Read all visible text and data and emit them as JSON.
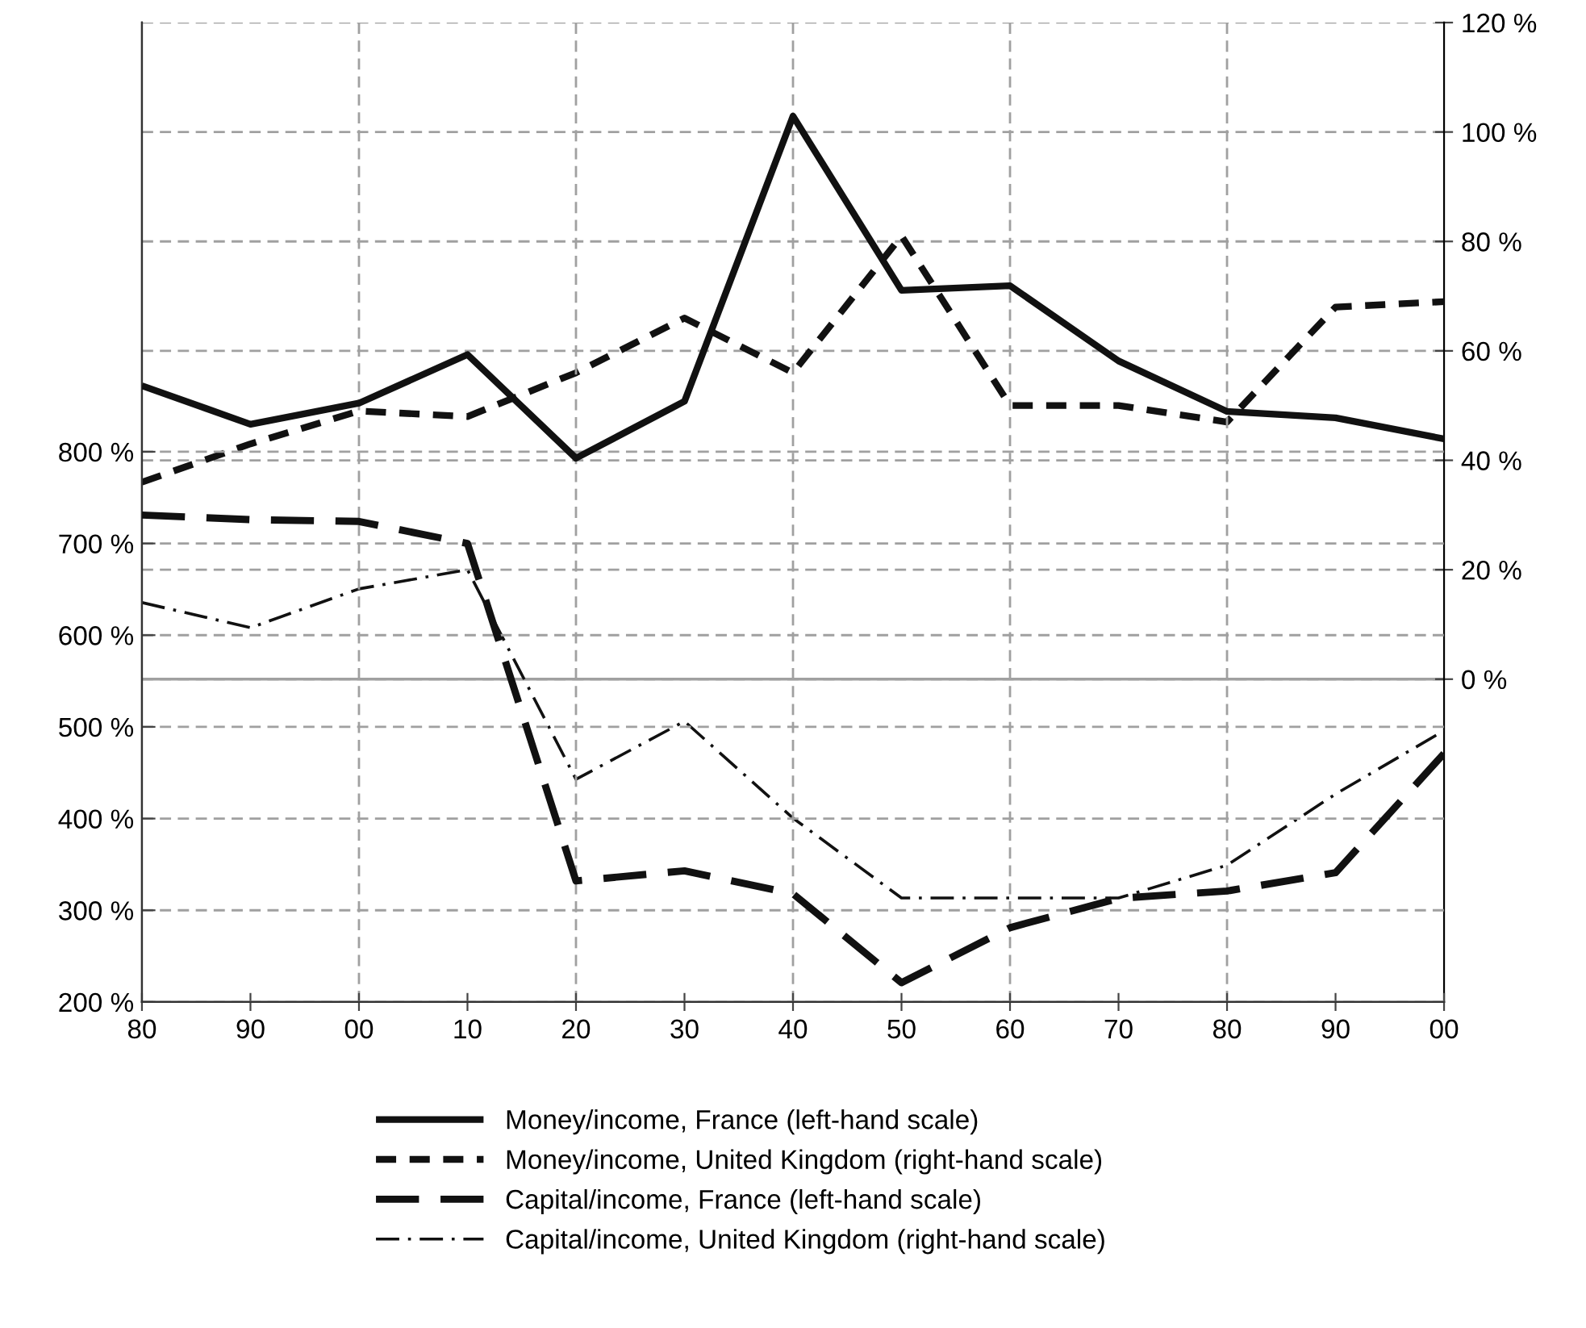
{
  "chart_data": {
    "type": "line",
    "x": [
      1880,
      1890,
      1900,
      1910,
      1920,
      1930,
      1940,
      1950,
      1960,
      1970,
      1980,
      1990,
      2000
    ],
    "xlim": [
      1880,
      2000
    ],
    "xticks": [
      {
        "value": 1880,
        "label": "80"
      },
      {
        "value": 1890,
        "label": "90"
      },
      {
        "value": 1900,
        "label": "00"
      },
      {
        "value": 1910,
        "label": "10"
      },
      {
        "value": 1920,
        "label": "20"
      },
      {
        "value": 1930,
        "label": "30"
      },
      {
        "value": 1940,
        "label": "40"
      },
      {
        "value": 1950,
        "label": "50"
      },
      {
        "value": 1960,
        "label": "60"
      },
      {
        "value": 1970,
        "label": "70"
      },
      {
        "value": 1980,
        "label": "80"
      },
      {
        "value": 1990,
        "label": "90"
      },
      {
        "value": 2000,
        "label": "00"
      }
    ],
    "ylim": [
      200,
      1268
    ],
    "yticks": [
      {
        "value": 200,
        "label": "200 %"
      },
      {
        "value": 300,
        "label": "300 %"
      },
      {
        "value": 400,
        "label": "400 %"
      },
      {
        "value": 500,
        "label": "500 %"
      },
      {
        "value": 600,
        "label": "600 %"
      },
      {
        "value": 700,
        "label": "700 %"
      },
      {
        "value": 800,
        "label": "800 %"
      }
    ],
    "y2lim": [
      -59,
      120
    ],
    "y2ticks": [
      {
        "value": 0,
        "label": "0 %"
      },
      {
        "value": 20,
        "label": "20 %"
      },
      {
        "value": 40,
        "label": "40 %"
      },
      {
        "value": 60,
        "label": "60 %"
      },
      {
        "value": 80,
        "label": "80 %"
      },
      {
        "value": 100,
        "label": "100 %"
      },
      {
        "value": 120,
        "label": "120 %"
      }
    ],
    "grid": "y",
    "legend": "bottom",
    "ref_lines": [
      {
        "axis": "y2",
        "value": 0,
        "color": "#a0a0a0",
        "line_style": "solid"
      },
      {
        "axis": "x",
        "value": 1900,
        "color": "#a0a0a0",
        "line_style": "dashed"
      },
      {
        "axis": "x",
        "value": 1920,
        "color": "#a0a0a0",
        "line_style": "dashed"
      },
      {
        "axis": "x",
        "value": 1940,
        "color": "#a0a0a0",
        "line_style": "dashed"
      },
      {
        "axis": "x",
        "value": 1960,
        "color": "#a0a0a0",
        "line_style": "dashed"
      },
      {
        "axis": "x",
        "value": 1980,
        "color": "#a0a0a0",
        "line_style": "dashed"
      }
    ],
    "series": [
      {
        "name": "Money/income, France (left-hand scale)",
        "color": "#111111",
        "line_style": "solid",
        "values": [
          872,
          830,
          853,
          906,
          793,
          855,
          1166,
          976,
          981,
          899,
          844,
          837,
          814
        ]
      },
      {
        "name": "Money/income, United Kingdom (right-hand scale)",
        "color": "#111111",
        "line_style": "dotted",
        "axis": "y2",
        "values": [
          36,
          43,
          49,
          48,
          56,
          66,
          56,
          81,
          50,
          50,
          47,
          68,
          69
        ]
      },
      {
        "name": "Capital/income, France (left-hand scale)",
        "color": "#111111",
        "line_style": "dashed",
        "values": [
          731,
          726,
          724,
          700,
          332,
          343,
          318,
          221,
          281,
          313,
          321,
          341,
          471
        ]
      },
      {
        "name": "Capital/income, United Kingdom (right-hand scale)",
        "color": "#111111",
        "line_style": "dashdot",
        "axis": "y2",
        "values": [
          14,
          9.4,
          16.5,
          20,
          -18.3,
          -7.7,
          -25.4,
          -40,
          -40,
          -40,
          -34,
          -21,
          -9.4
        ]
      }
    ]
  }
}
